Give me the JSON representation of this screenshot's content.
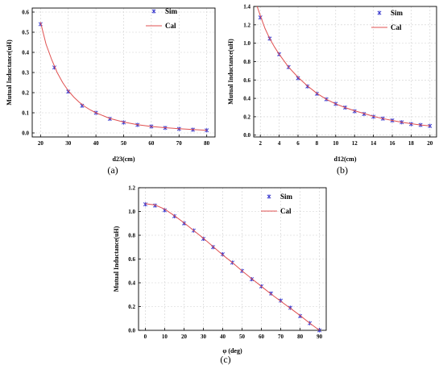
{
  "chart_data": [
    {
      "type": "scatter",
      "panel_label": "(a)",
      "xlabel": "d23(cm)",
      "ylabel": "Mutual Inductance(uH)",
      "xlim": [
        17,
        83
      ],
      "ylim": [
        -0.02,
        0.62
      ],
      "xticks": [
        20,
        30,
        40,
        50,
        60,
        70,
        80
      ],
      "yticks": [
        0.0,
        0.1,
        0.2,
        0.3,
        0.4,
        0.5,
        0.6
      ],
      "grid": true,
      "legend_position": "top-right",
      "series": [
        {
          "name": "Sim",
          "kind": "markers",
          "color": "#3333cc",
          "x": [
            20,
            25,
            30,
            35,
            40,
            45,
            50,
            55,
            60,
            65,
            70,
            75,
            80
          ],
          "y": [
            0.54,
            0.325,
            0.205,
            0.135,
            0.1,
            0.07,
            0.052,
            0.04,
            0.032,
            0.025,
            0.02,
            0.016,
            0.013
          ]
        },
        {
          "name": "Cal",
          "kind": "line",
          "color": "#e05050",
          "x": [
            20,
            22,
            24,
            26,
            28,
            30,
            32,
            34,
            36,
            38,
            40,
            45,
            50,
            55,
            60,
            65,
            70,
            75,
            80
          ],
          "y": [
            0.55,
            0.44,
            0.365,
            0.3,
            0.25,
            0.21,
            0.178,
            0.152,
            0.131,
            0.114,
            0.1,
            0.072,
            0.054,
            0.041,
            0.032,
            0.026,
            0.021,
            0.017,
            0.013
          ]
        }
      ]
    },
    {
      "type": "scatter",
      "panel_label": "(b)",
      "xlabel": "d12(cm)",
      "ylabel": "Mutual Inductance(uH)",
      "xlim": [
        1.3,
        20.7
      ],
      "ylim": [
        -0.02,
        1.4
      ],
      "xticks": [
        2,
        4,
        6,
        8,
        10,
        12,
        14,
        16,
        18,
        20
      ],
      "yticks": [
        0.0,
        0.2,
        0.4,
        0.6,
        0.8,
        1.0,
        1.2,
        1.4
      ],
      "grid": true,
      "legend_position": "top-right",
      "series": [
        {
          "name": "Sim",
          "kind": "markers",
          "color": "#3333cc",
          "x": [
            2,
            3,
            4,
            5,
            6,
            7,
            8,
            9,
            10,
            11,
            12,
            13,
            14,
            15,
            16,
            17,
            18,
            19,
            20
          ],
          "y": [
            1.28,
            1.05,
            0.88,
            0.74,
            0.62,
            0.53,
            0.45,
            0.39,
            0.34,
            0.3,
            0.26,
            0.23,
            0.2,
            0.18,
            0.16,
            0.14,
            0.12,
            0.11,
            0.1
          ]
        },
        {
          "name": "Cal",
          "kind": "line",
          "color": "#e05050",
          "x": [
            1.6,
            2,
            2.5,
            3,
            3.5,
            4,
            5,
            6,
            7,
            8,
            9,
            10,
            11,
            12,
            13,
            14,
            15,
            16,
            17,
            18,
            19,
            20
          ],
          "y": [
            1.42,
            1.3,
            1.16,
            1.05,
            0.96,
            0.88,
            0.74,
            0.63,
            0.535,
            0.455,
            0.39,
            0.34,
            0.3,
            0.265,
            0.235,
            0.205,
            0.18,
            0.16,
            0.14,
            0.125,
            0.11,
            0.1
          ]
        }
      ]
    },
    {
      "type": "scatter",
      "panel_label": "(c)",
      "xlabel": "φ (deg)",
      "ylabel": "Mutual Inductance(uH)",
      "xlim": [
        -3.5,
        93.5
      ],
      "ylim": [
        0.0,
        1.2
      ],
      "xticks": [
        0,
        10,
        20,
        30,
        40,
        50,
        60,
        70,
        80,
        90
      ],
      "yticks": [
        0.0,
        0.2,
        0.4,
        0.6,
        0.8,
        1.0,
        1.2
      ],
      "grid": true,
      "legend_position": "top-right",
      "series": [
        {
          "name": "Sim",
          "kind": "markers",
          "color": "#3333cc",
          "x": [
            0,
            5,
            10,
            15,
            20,
            25,
            30,
            35,
            40,
            45,
            50,
            55,
            60,
            65,
            70,
            75,
            80,
            85,
            90
          ],
          "y": [
            1.06,
            1.05,
            1.01,
            0.96,
            0.9,
            0.84,
            0.77,
            0.7,
            0.64,
            0.57,
            0.5,
            0.43,
            0.37,
            0.31,
            0.25,
            0.19,
            0.12,
            0.06,
            0.0
          ]
        },
        {
          "name": "Cal",
          "kind": "line",
          "color": "#e05050",
          "x": [
            0,
            5,
            10,
            15,
            20,
            25,
            30,
            35,
            40,
            45,
            50,
            55,
            60,
            65,
            70,
            75,
            80,
            85,
            90
          ],
          "y": [
            1.065,
            1.055,
            1.02,
            0.965,
            0.905,
            0.84,
            0.775,
            0.705,
            0.635,
            0.57,
            0.5,
            0.435,
            0.37,
            0.305,
            0.245,
            0.185,
            0.125,
            0.06,
            0.0
          ]
        }
      ]
    }
  ]
}
